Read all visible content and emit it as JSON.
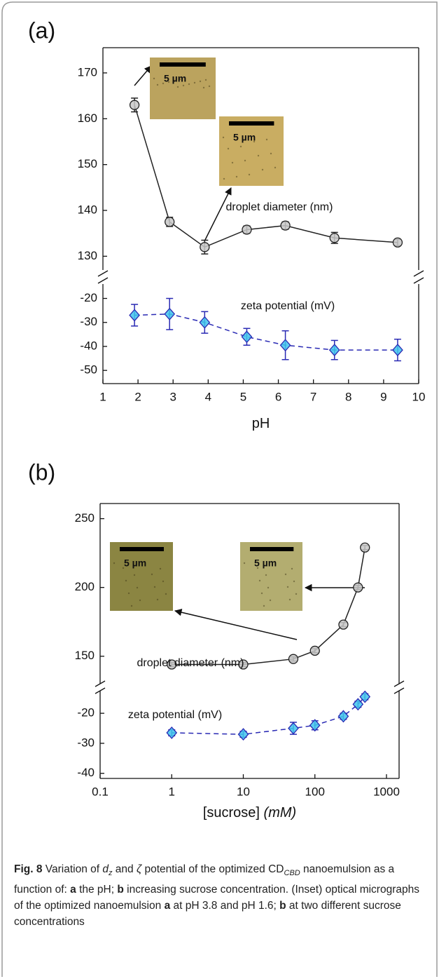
{
  "chart_data": [
    {
      "type": "line",
      "panel": "(a)",
      "xlabel": "pH",
      "x": [
        1.9,
        2.9,
        3.9,
        5.1,
        6.2,
        7.6,
        9.4
      ],
      "xlim": [
        1,
        10
      ],
      "xticks": [
        1,
        2,
        3,
        4,
        5,
        6,
        7,
        8,
        9,
        10
      ],
      "ylim": [
        127,
        175.5
      ],
      "yticks": [
        130,
        140,
        150,
        160,
        170
      ],
      "y2lim": [
        -55.5,
        -14
      ],
      "y2ticks": [
        -50,
        -40,
        -30,
        -20
      ],
      "series": [
        {
          "name": "droplet diameter (nm)",
          "color": "#222222",
          "marker": "circle",
          "marker_color": "#c8c8c8",
          "linestyle": "solid",
          "values": [
            163,
            137.5,
            132,
            135.8,
            136.7,
            134,
            133
          ],
          "errors": [
            1.5,
            1,
            1.5,
            0.8,
            0.8,
            1.2,
            0.7
          ]
        },
        {
          "name": "zeta potential (mV)",
          "color": "#2a2ab4",
          "marker": "diamond",
          "marker_color": "#3fc4ec",
          "linestyle": "dashed",
          "axis": "y2",
          "values": [
            -27,
            -26.5,
            -30,
            -36,
            -39.5,
            -41.5,
            -41.5
          ],
          "errors": [
            4.5,
            6.5,
            4.5,
            3.5,
            6,
            4,
            4.5
          ]
        }
      ],
      "insets": [
        {
          "label": "5 µm"
        },
        {
          "label": "5 µm"
        }
      ]
    },
    {
      "type": "line",
      "panel": "(b)",
      "xlabel": "[sucrose]",
      "xlabel_unit": "(mM)",
      "xlog": true,
      "x": [
        1,
        10,
        50,
        100,
        250,
        400,
        500
      ],
      "xlim": [
        0.1,
        1500
      ],
      "xticks": [
        0.1,
        1,
        10,
        100,
        1000
      ],
      "ylim": [
        130,
        261
      ],
      "yticks": [
        150,
        200,
        250
      ],
      "y2lim": [
        -41.7,
        -12.5
      ],
      "y2ticks": [
        -40,
        -30,
        -20
      ],
      "series": [
        {
          "name": "droplet diameter (nm)",
          "color": "#222222",
          "marker": "circle",
          "marker_color": "#c8c8c8",
          "linestyle": "solid",
          "values": [
            144,
            144,
            148,
            154,
            173,
            200,
            229
          ],
          "errors": [
            1.5,
            1.5,
            1.5,
            1.5,
            1.5,
            1.5,
            1.5
          ]
        },
        {
          "name": "zeta potential (mV)",
          "color": "#2a2ab4",
          "marker": "diamond",
          "marker_color": "#3fc4ec",
          "linestyle": "dashed",
          "axis": "y2",
          "values": [
            -26.5,
            -27,
            -25,
            -24,
            -21,
            -17,
            -14.5
          ],
          "errors": [
            1,
            1,
            2,
            1.5,
            1,
            1,
            1
          ]
        }
      ],
      "insets": [
        {
          "label": "5 µm"
        },
        {
          "label": "5 µm"
        }
      ]
    }
  ],
  "caption": [
    {
      "text": "Fig. 8",
      "style": "b"
    },
    {
      "text": " Variation of "
    },
    {
      "text": "d",
      "style": "i"
    },
    {
      "text": "z",
      "style": "sub"
    },
    {
      "text": " and "
    },
    {
      "text": "ζ",
      "style": "i"
    },
    {
      "text": " potential of the optimized CD"
    },
    {
      "text": "CBD",
      "style": "sub"
    },
    {
      "text": " nanoemulsion as a function of: "
    },
    {
      "text": "a",
      "style": "b"
    },
    {
      "text": " the pH; "
    },
    {
      "text": "b",
      "style": "b"
    },
    {
      "text": " increasing sucrose concentration. (Inset) optical micrographs of the optimized nanoemulsion "
    },
    {
      "text": "a",
      "style": "b"
    },
    {
      "text": " at pH 3.8 and pH 1.6; "
    },
    {
      "text": "b",
      "style": "b"
    },
    {
      "text": " at two different sucrose concentrations"
    }
  ]
}
